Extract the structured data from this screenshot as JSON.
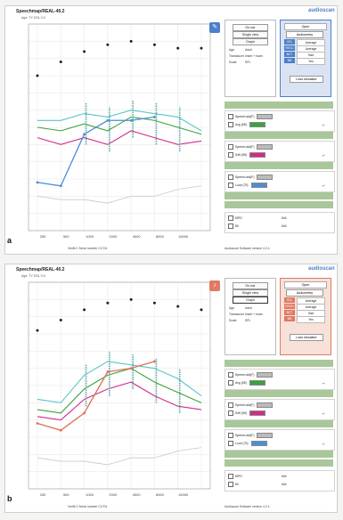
{
  "colors": {
    "green": "#3aa33a",
    "pink": "#d42a8a",
    "blue": "#4a8fd6",
    "orange": "#e07050",
    "teal": "#59c6c6",
    "grey": "#c9c9c9",
    "panel_a_accent": "#4d7fc9",
    "panel_b_accent": "#e07a62",
    "greenbar": "#a9c79a"
  },
  "panels": [
    {
      "corner_label": "a",
      "title": "Speechmap/REAL-40.2",
      "subtitle": "Age: TY DSL 0.0",
      "brand": "audioscan",
      "accent": "#4d7fc9",
      "accent_fill": "#d9e3f3",
      "tool_icon": "pencil-icon",
      "footer_left": "Verifit 2 Serial number C1704",
      "footer_right": "Audioscan Software version 4.2.4",
      "options": {
        "buttons": [
          "On-ear",
          "Single view",
          "Graph"
        ],
        "active_button": "",
        "fields": [
          {
            "k": "Age",
            "v": "Adult"
          },
          {
            "k": "Transducer",
            "v": "Insert + foam"
          },
          {
            "k": "Scale",
            "v": "SPL"
          }
        ]
      },
      "config": {
        "dropdown": "Open",
        "audiometry": "Audiometry",
        "rows": [
          {
            "k": "UCL",
            "v": "Average"
          },
          {
            "k": "RECD",
            "v": "Average"
          },
          {
            "k": "BCT",
            "v": "Size"
          },
          {
            "k": "BN",
            "v": "Yes"
          }
        ],
        "loss_button": "Loss simulator"
      },
      "tests": [
        {
          "line1": "Speech-std(F)",
          "line2": "Avg (65)",
          "swatch": "green"
        },
        {
          "line1": "Speech-std(F)",
          "line2": "Soft (55)",
          "swatch": "pink"
        },
        {
          "line1": "Speech-std(F)",
          "line2": "Loud (75)",
          "swatch": "blue"
        }
      ],
      "bottom": {
        "line1a": "MPO",
        "line1b": "N/A",
        "line2a": "80",
        "line2b": "N/A"
      },
      "chart_data": {
        "type": "line",
        "x_tick_labels": [
          "250",
          "500",
          "1000",
          "2000",
          "4000",
          "8000",
          "16000"
        ],
        "upper_dots": [
          90,
          98,
          104,
          108,
          110,
          108,
          106,
          106
        ],
        "blue": [
          28,
          26,
          56,
          64,
          64,
          66
        ],
        "teal": [
          64,
          64,
          68,
          66,
          70,
          68,
          66,
          58
        ],
        "green": [
          60,
          58,
          62,
          58,
          66,
          64,
          60,
          56
        ],
        "pink": [
          54,
          50,
          54,
          50,
          58,
          54,
          50,
          52
        ],
        "grey": [
          20,
          18,
          18,
          16,
          20,
          20,
          24,
          26
        ]
      }
    },
    {
      "corner_label": "b",
      "title": "Speechmap/REAL-40.2",
      "subtitle": "Age: TY DSL 0.0",
      "brand": "audioscan",
      "accent": "#e07a62",
      "accent_fill": "#f8e1d9",
      "tool_icon": "hearing-icon",
      "footer_left": "Verifit 2 Serial number C1704",
      "footer_right": "Audioscan Software version 4.2.4",
      "options": {
        "buttons": [
          "On-ear",
          "Single view",
          "Graph"
        ],
        "active_button": "Graph",
        "fields": [
          {
            "k": "Age",
            "v": "Adult"
          },
          {
            "k": "Transducer",
            "v": "Insert + foam"
          },
          {
            "k": "Scale",
            "v": "SPL"
          }
        ]
      },
      "config": {
        "dropdown": "Open",
        "audiometry": "Audiometry",
        "rows": [
          {
            "k": "UCL",
            "v": "Average"
          },
          {
            "k": "RECD",
            "v": "Average"
          },
          {
            "k": "BCT",
            "v": "Size"
          },
          {
            "k": "BN",
            "v": "Yes"
          }
        ],
        "loss_button": "Loss simulator"
      },
      "tests": [
        {
          "line1": "Speech-std(F)",
          "line2": "Avg (65)",
          "swatch": "green"
        },
        {
          "line1": "Speech-std(F)",
          "line2": "Soft (55)",
          "swatch": "pink"
        },
        {
          "line1": "Speech-std(F)",
          "line2": "Loud (75)",
          "swatch": "blue"
        }
      ],
      "bottom": {
        "line1a": "MPO",
        "line1b": "N/A",
        "line2a": "80",
        "line2b": "N/A"
      },
      "chart_data": {
        "type": "line",
        "x_tick_labels": [
          "250",
          "500",
          "1000",
          "2000",
          "4000",
          "8000",
          "16000"
        ],
        "upper_dots": [
          92,
          98,
          104,
          108,
          110,
          108,
          106,
          104
        ],
        "orange": [
          38,
          34,
          44,
          68,
          70,
          74
        ],
        "teal": [
          52,
          50,
          66,
          74,
          72,
          70,
          64,
          54
        ],
        "green": [
          46,
          44,
          58,
          66,
          70,
          62,
          56,
          50
        ],
        "pink": [
          42,
          40,
          52,
          58,
          62,
          54,
          48,
          46
        ],
        "grey": [
          18,
          16,
          16,
          14,
          18,
          18,
          22,
          24
        ]
      }
    }
  ]
}
